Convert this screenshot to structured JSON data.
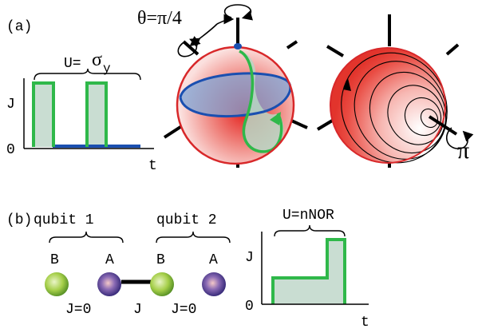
{
  "panel_a": {
    "label": "(a)",
    "theta_label": "θ=π/4",
    "u_prefix": "U=",
    "u_symbol": "σ",
    "u_subscript": "y",
    "ylabel": "J",
    "y0": "0",
    "xlabel": "t",
    "pi_label": "π"
  },
  "panel_b": {
    "label": "(b)",
    "qubit1": "qubit 1",
    "qubit2": "qubit 2",
    "site_labels": [
      "B",
      "A",
      "B",
      "A"
    ],
    "coupling_left": "J=0",
    "coupling_mid": "J",
    "coupling_right": "J=0",
    "u_label": "U=nNOR",
    "ylabel": "J",
    "y0": "0",
    "xlabel": "t"
  },
  "colors": {
    "pulse_green": "#2fb84a",
    "pulse_fill": "#c9ddd2",
    "baseline_blue": "#1a4fb0",
    "sphere_red": "#e8362c",
    "sphere_rim": "#d8282a",
    "site_green": "#8fc23a",
    "site_purple": "#5a3a9a"
  }
}
